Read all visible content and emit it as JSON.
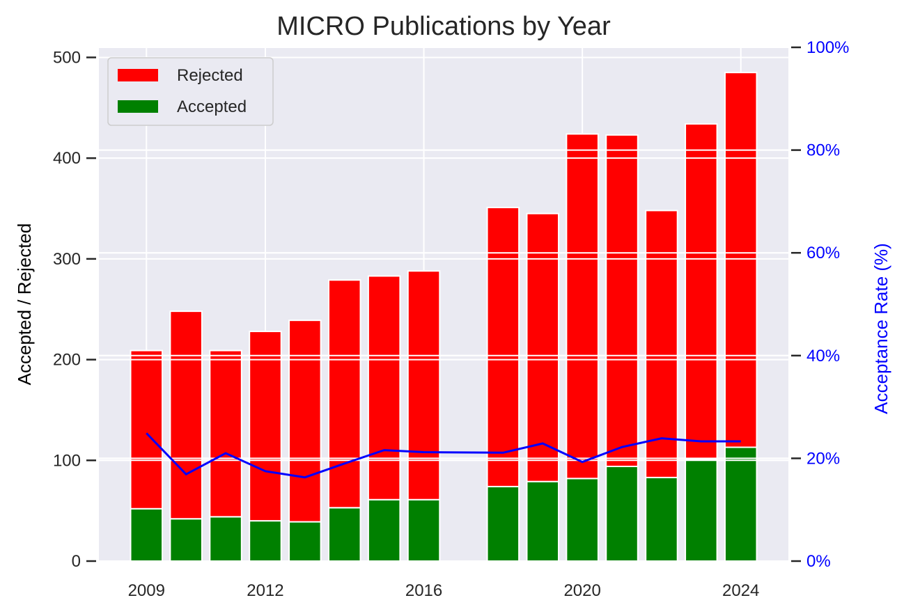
{
  "chart_data": {
    "type": "bar",
    "title": "MICRO Publications by Year",
    "xlabel": "",
    "ylabel": "Accepted / Rejected",
    "y2label": "Acceptance Rate (%)",
    "stacked": true,
    "categories": [
      2009,
      2010,
      2011,
      2012,
      2013,
      2014,
      2015,
      2016,
      2018,
      2019,
      2020,
      2021,
      2022,
      2023,
      2024
    ],
    "series": [
      {
        "name": "Accepted",
        "color": "#008000",
        "values": [
          52,
          42,
          44,
          40,
          39,
          53,
          61,
          61,
          74,
          79,
          82,
          94,
          83,
          101,
          113
        ]
      },
      {
        "name": "Rejected",
        "color": "#ff0000",
        "values": [
          157,
          206,
          165,
          188,
          200,
          226,
          222,
          227,
          277,
          266,
          342,
          329,
          265,
          333,
          372
        ]
      }
    ],
    "line": {
      "color": "#0000ff",
      "axis": "right",
      "values": [
        24.9,
        16.9,
        21.0,
        17.5,
        16.3,
        19.0,
        21.6,
        21.2,
        21.1,
        22.9,
        19.3,
        22.2,
        23.9,
        23.3,
        23.3
      ]
    },
    "ylim": [
      0,
      510
    ],
    "y2lim": [
      0,
      100
    ],
    "xlim": [
      2007.8,
      2025.2
    ],
    "yticks": [
      0,
      100,
      200,
      300,
      400,
      500
    ],
    "y2ticks": [
      0,
      20,
      40,
      60,
      80,
      100
    ],
    "y2tick_labels": [
      "0%",
      "20%",
      "40%",
      "60%",
      "80%",
      "100%"
    ],
    "xticks": [
      2009,
      2012,
      2016,
      2020,
      2024
    ],
    "grid": true,
    "legend": {
      "position": "top-left",
      "entries": [
        "Rejected",
        "Accepted"
      ]
    }
  }
}
